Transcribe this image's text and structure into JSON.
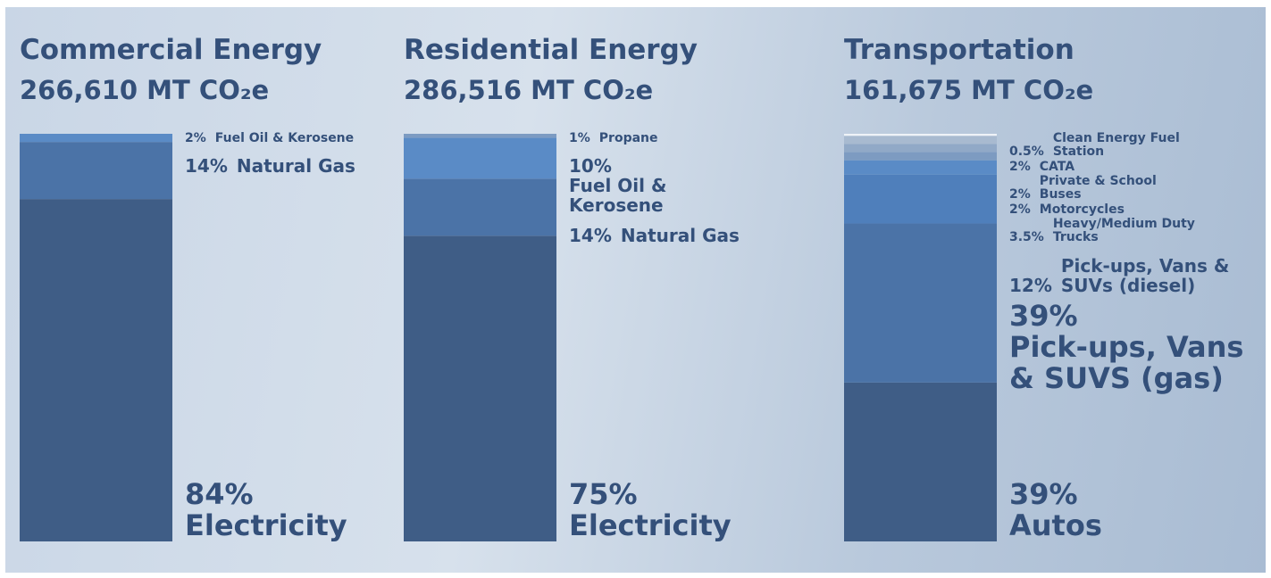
{
  "chart_data": [
    {
      "type": "stacked-bar",
      "title": "Commercial Energy",
      "subtitle": "266,610 MT CO₂e",
      "series": [
        {
          "name": "Electricity",
          "color": "#3f5d86",
          "values": [
            84
          ],
          "value_labels": [
            "84%"
          ]
        },
        {
          "name": "Natural Gas",
          "color": "#4b73a7",
          "values": [
            14
          ],
          "value_labels": [
            "14%"
          ]
        },
        {
          "name": "Fuel Oil & Kerosene",
          "color": "#5a8bc6",
          "values": [
            2
          ],
          "value_labels": [
            "2%"
          ]
        }
      ]
    },
    {
      "type": "stacked-bar",
      "title": "Residential Energy",
      "subtitle": "286,516 MT CO₂e",
      "series": [
        {
          "name": "Electricity",
          "color": "#3f5d86",
          "values": [
            75
          ],
          "value_labels": [
            "75%"
          ]
        },
        {
          "name": "Natural Gas",
          "color": "#4b73a7",
          "values": [
            14
          ],
          "value_labels": [
            "14%"
          ]
        },
        {
          "name": "Fuel Oil & Kerosene",
          "color": "#5a8bc6",
          "values": [
            10
          ],
          "value_labels": [
            "10%"
          ]
        },
        {
          "name": "Propane",
          "color": "#7c9bc2",
          "values": [
            1
          ],
          "value_labels": [
            "1%"
          ]
        }
      ]
    },
    {
      "type": "stacked-bar",
      "title": "Transportation",
      "subtitle": "161,675 MT CO₂e",
      "series": [
        {
          "name": "Autos",
          "color": "#3f5d86",
          "values": [
            39
          ],
          "value_labels": [
            "39%"
          ]
        },
        {
          "name": "Pick-ups, Vans & SUVS (gas)",
          "color": "#4b73a7",
          "values": [
            39
          ],
          "value_labels": [
            "39%"
          ]
        },
        {
          "name": "Pick-ups, Vans & SUVs (diesel)",
          "color": "#4f7fbb",
          "values": [
            12
          ],
          "value_labels": [
            "12%"
          ]
        },
        {
          "name": "Heavy/Medium Duty Trucks",
          "color": "#5a8bc6",
          "values": [
            3.5
          ],
          "value_labels": [
            "3.5%"
          ]
        },
        {
          "name": "Motorcycles",
          "color": "#7d9bc1",
          "values": [
            2
          ],
          "value_labels": [
            "2%"
          ]
        },
        {
          "name": "Private & School Buses",
          "color": "#91a9c7",
          "values": [
            2
          ],
          "value_labels": [
            "2%"
          ]
        },
        {
          "name": "CATA",
          "color": "#a8bad0",
          "values": [
            2
          ],
          "value_labels": [
            "2%"
          ]
        },
        {
          "name": "Clean Energy Fuel Station",
          "color": "#eef2f7",
          "values": [
            0.5
          ],
          "value_labels": [
            "0.5%"
          ]
        }
      ]
    }
  ]
}
